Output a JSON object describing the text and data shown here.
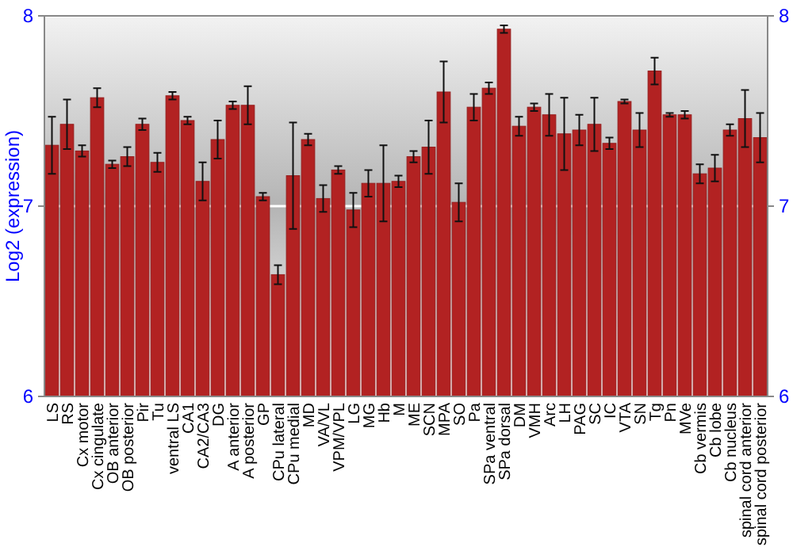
{
  "chart_data": {
    "type": "bar",
    "ylabel": "Log2 (expression)",
    "categories": [
      "LS",
      "RS",
      "Cx motor",
      "Cx cingulate",
      "OB anterior",
      "OB posterior",
      "Pir",
      "Tu",
      "ventral LS",
      "CA1",
      "CA2/CA3",
      "DG",
      "A anterior",
      "A posterior",
      "GP",
      "CPu lateral",
      "CPu medial",
      "MD",
      "VA/VL",
      "VPM/VPL",
      "LG",
      "MG",
      "Hb",
      "M",
      "ME",
      "SCN",
      "MPA",
      "SO",
      "Pa",
      "SPa ventral",
      "SPa dorsal",
      "DM",
      "VMH",
      "Arc",
      "LH",
      "PAG",
      "SC",
      "IC",
      "VTA",
      "SN",
      "Tg",
      "Pn",
      "MVe",
      "Cb vermis",
      "Cb lobe",
      "Cb nucleus",
      "spinal cord anterior",
      "spinal cord posterior"
    ],
    "values": [
      7.32,
      7.43,
      7.29,
      7.57,
      7.22,
      7.26,
      7.43,
      7.23,
      7.58,
      7.45,
      7.13,
      7.35,
      7.53,
      7.53,
      7.05,
      6.64,
      7.16,
      7.35,
      7.04,
      7.19,
      6.98,
      7.12,
      7.12,
      7.13,
      7.26,
      7.31,
      7.6,
      7.02,
      7.52,
      7.62,
      7.93,
      7.42,
      7.52,
      7.48,
      7.38,
      7.4,
      7.43,
      7.33,
      7.55,
      7.4,
      7.71,
      7.48,
      7.48,
      7.17,
      7.2,
      7.4,
      7.46,
      7.36
    ],
    "errors": [
      0.15,
      0.13,
      0.03,
      0.05,
      0.02,
      0.05,
      0.03,
      0.05,
      0.02,
      0.02,
      0.1,
      0.1,
      0.02,
      0.1,
      0.02,
      0.05,
      0.28,
      0.03,
      0.07,
      0.02,
      0.09,
      0.07,
      0.2,
      0.03,
      0.03,
      0.14,
      0.16,
      0.1,
      0.07,
      0.03,
      0.02,
      0.05,
      0.02,
      0.11,
      0.19,
      0.08,
      0.14,
      0.03,
      0.01,
      0.09,
      0.07,
      0.01,
      0.02,
      0.05,
      0.07,
      0.03,
      0.15,
      0.13
    ],
    "color": "#b22222",
    "ylim": [
      6,
      8
    ],
    "yticks": [
      6,
      7,
      8
    ],
    "y2lim": [
      6,
      8
    ],
    "y2ticks": [
      6,
      7,
      8
    ],
    "grid": "y"
  }
}
